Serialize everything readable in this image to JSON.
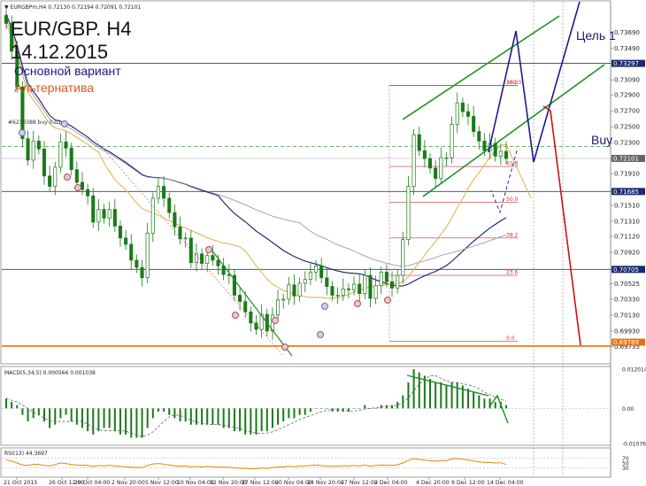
{
  "window": {
    "title": "▼ EURGBPm,H4 0.72130 0.72194 0.72091 0.72101"
  },
  "chart_data": {
    "type": "candlestick",
    "title": "EUR/GBP. H4",
    "subtitle": "14.12.2015",
    "legend": [
      "Основной вариант",
      "Альтернатива"
    ],
    "target_label": "Цель 1",
    "signal_label": "Buy",
    "order_label": "#6210388 buy 0.01",
    "ylim": [
      0.6955,
      0.7405
    ],
    "y_ticks": [
      "0.73690",
      "0.73490",
      "0.73297",
      "0.73090",
      "0.72900",
      "0.72700",
      "0.72500",
      "0.72300",
      "0.72101",
      "0.71910",
      "0.71685",
      "0.71510",
      "0.71310",
      "0.71120",
      "0.70920",
      "0.70705",
      "0.70525",
      "0.70330",
      "0.70130",
      "0.69930",
      "0.69735"
    ],
    "price_tags": [
      {
        "value": 0.73297,
        "text": "0.73297"
      },
      {
        "value": 0.72101,
        "text": "0.72101"
      },
      {
        "value": 0.71685,
        "text": "0.71685"
      },
      {
        "value": 0.70705,
        "text": "0.70705"
      },
      {
        "value": 0.69789,
        "text": "0.69789"
      }
    ],
    "x_ticks": [
      "21 Oct 2015",
      "26 Oct 12:00",
      "29 Oct 04:00",
      "2 Nov 20:00",
      "5 Nov 12:00",
      "10 Nov 04:00",
      "12 Nov 20:00",
      "17 Nov 12:00",
      "20 Nov 04:00",
      "24 Nov 20:00",
      "27 Nov 12:00",
      "2 Dec 04:00",
      "4 Dec 20:00",
      "9 Dec 12:00",
      "14 Dec 04:00"
    ],
    "fib_levels": [
      {
        "label": "100.0",
        "value": 0.7302
      },
      {
        "label": "38.2",
        "value": 0.7302
      },
      {
        "label": "61.8",
        "value": 0.72
      },
      {
        "label": "50.0",
        "value": 0.7155
      },
      {
        "label": "38.2",
        "value": 0.711
      },
      {
        "label": "23.6",
        "value": 0.7063
      },
      {
        "label": "0.0",
        "value": 0.698
      }
    ],
    "close_series": [
      0.738,
      0.7345,
      0.73,
      0.7235,
      0.7208,
      0.7232,
      0.7222,
      0.7188,
      0.7175,
      0.7199,
      0.7231,
      0.7223,
      0.7196,
      0.718,
      0.7171,
      0.7163,
      0.713,
      0.7146,
      0.7135,
      0.7146,
      0.7125,
      0.711,
      0.7102,
      0.7082,
      0.7073,
      0.706,
      0.7116,
      0.716,
      0.7175,
      0.716,
      0.7142,
      0.7124,
      0.7109,
      0.711,
      0.7079,
      0.709,
      0.7078,
      0.7088,
      0.7082,
      0.7075,
      0.7064,
      0.7063,
      0.7038,
      0.703,
      0.7017,
      0.7003,
      0.6995,
      0.7014,
      0.6993,
      0.7013,
      0.7032,
      0.7033,
      0.7051,
      0.7037,
      0.7053,
      0.7058,
      0.7067,
      0.7075,
      0.706,
      0.7049,
      0.7038,
      0.7038,
      0.7046,
      0.7045,
      0.7052,
      0.704,
      0.7063,
      0.7034,
      0.705,
      0.7067,
      0.7055,
      0.7047,
      0.7063,
      0.7108,
      0.7175,
      0.724,
      0.722,
      0.721,
      0.7198,
      0.7185,
      0.7211,
      0.7211,
      0.7253,
      0.728,
      0.7269,
      0.7263,
      0.7244,
      0.7232,
      0.722,
      0.7229,
      0.7213,
      0.7219,
      0.721
    ],
    "macd": {
      "label": "MACD(5,34,5) 0.000566 0.001038",
      "ylim": [
        -0.0107652,
        0.012014
      ],
      "ticks": [
        "0.012014",
        "0.00",
        "-0.0107652"
      ],
      "histogram": [
        0.003,
        0.002,
        0.001,
        -0.002,
        -0.004,
        -0.003,
        -0.002,
        -0.004,
        -0.006,
        -0.005,
        -0.003,
        -0.002,
        -0.004,
        -0.005,
        -0.006,
        -0.007,
        -0.008,
        -0.007,
        -0.006,
        -0.006,
        -0.007,
        -0.008,
        -0.008,
        -0.009,
        -0.009,
        -0.009,
        -0.006,
        -0.003,
        -0.001,
        -0.001,
        -0.002,
        -0.003,
        -0.004,
        -0.004,
        -0.005,
        -0.005,
        -0.005,
        -0.005,
        -0.005,
        -0.005,
        -0.006,
        -0.006,
        -0.007,
        -0.007,
        -0.008,
        -0.008,
        -0.008,
        -0.007,
        -0.007,
        -0.006,
        -0.005,
        -0.004,
        -0.003,
        -0.003,
        -0.002,
        -0.002,
        -0.001,
        0.0,
        0.0,
        0.0,
        -0.001,
        -0.001,
        -0.001,
        -0.001,
        0.0,
        0.0,
        0.001,
        0.0,
        0.0,
        0.001,
        0.001,
        0.001,
        0.002,
        0.004,
        0.008,
        0.012,
        0.011,
        0.01,
        0.009,
        0.008,
        0.008,
        0.007,
        0.008,
        0.008,
        0.007,
        0.006,
        0.005,
        0.004,
        0.003,
        0.003,
        0.002,
        0.002,
        0.001
      ]
    },
    "rsi": {
      "label": "RSI(13) 44.3697",
      "ylim": [
        0,
        100
      ],
      "ticks": [
        "100",
        "70",
        "50",
        "30",
        "0"
      ],
      "values": [
        62,
        58,
        50,
        42,
        40,
        45,
        44,
        40,
        38,
        44,
        50,
        48,
        44,
        42,
        41,
        40,
        36,
        40,
        38,
        41,
        38,
        36,
        35,
        33,
        32,
        31,
        40,
        46,
        48,
        45,
        42,
        39,
        37,
        38,
        34,
        36,
        34,
        36,
        35,
        34,
        33,
        33,
        30,
        29,
        28,
        27,
        26,
        30,
        28,
        31,
        34,
        34,
        37,
        35,
        38,
        38,
        40,
        42,
        39,
        38,
        37,
        37,
        39,
        38,
        40,
        38,
        42,
        37,
        40,
        42,
        41,
        40,
        43,
        50,
        60,
        68,
        64,
        62,
        59,
        57,
        60,
        60,
        66,
        68,
        65,
        62,
        58,
        55,
        52,
        53,
        50,
        51,
        44
      ]
    }
  }
}
